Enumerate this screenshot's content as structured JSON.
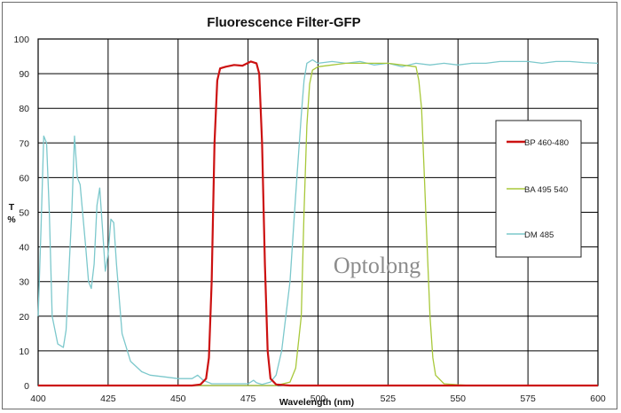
{
  "chart_data": {
    "type": "line",
    "title": "Fluorescence Filter-GFP",
    "xlabel": "Wavelength (nm)",
    "ylabel": "T\n%",
    "xlim": [
      400,
      600
    ],
    "ylim": [
      0,
      100
    ],
    "xticks": [
      400,
      425,
      450,
      475,
      500,
      525,
      550,
      575,
      600
    ],
    "yticks": [
      0,
      10,
      20,
      30,
      40,
      50,
      60,
      70,
      80,
      90,
      100
    ],
    "grid": true,
    "legend_position": "right",
    "watermark": "Optolong",
    "series": [
      {
        "name": "BP 460-480",
        "color": "#cc1111",
        "points": [
          [
            400,
            0
          ],
          [
            455,
            0
          ],
          [
            458,
            0.3
          ],
          [
            460,
            2
          ],
          [
            461,
            8
          ],
          [
            462,
            30
          ],
          [
            463,
            70
          ],
          [
            464,
            88
          ],
          [
            465,
            91.5
          ],
          [
            467,
            92
          ],
          [
            470,
            92.5
          ],
          [
            473,
            92.3
          ],
          [
            476,
            93.5
          ],
          [
            478,
            93
          ],
          [
            479,
            90
          ],
          [
            480,
            70
          ],
          [
            481,
            35
          ],
          [
            482,
            10
          ],
          [
            483,
            2
          ],
          [
            485,
            0.3
          ],
          [
            490,
            0
          ],
          [
            600,
            0
          ]
        ]
      },
      {
        "name": "BA 495-540",
        "color": "#a8c83a",
        "points": [
          [
            400,
            0
          ],
          [
            485,
            0
          ],
          [
            490,
            1
          ],
          [
            492,
            5
          ],
          [
            494,
            20
          ],
          [
            495,
            50
          ],
          [
            496,
            75
          ],
          [
            497,
            87
          ],
          [
            498,
            91
          ],
          [
            500,
            92
          ],
          [
            505,
            92.5
          ],
          [
            510,
            93
          ],
          [
            515,
            93
          ],
          [
            520,
            93
          ],
          [
            525,
            93
          ],
          [
            530,
            92.5
          ],
          [
            535,
            92
          ],
          [
            536,
            88
          ],
          [
            537,
            80
          ],
          [
            538,
            60
          ],
          [
            539,
            40
          ],
          [
            540,
            20
          ],
          [
            541,
            8
          ],
          [
            542,
            3
          ],
          [
            545,
            0.5
          ],
          [
            550,
            0.2
          ],
          [
            555,
            0
          ],
          [
            600,
            0
          ]
        ]
      },
      {
        "name": "DM 485",
        "color": "#7cc8cc",
        "points": [
          [
            400,
            20
          ],
          [
            401,
            45
          ],
          [
            402,
            72
          ],
          [
            403,
            70
          ],
          [
            404,
            50
          ],
          [
            405,
            20
          ],
          [
            407,
            12
          ],
          [
            409,
            11
          ],
          [
            410,
            16
          ],
          [
            412,
            50
          ],
          [
            413,
            72
          ],
          [
            414,
            60
          ],
          [
            415,
            58
          ],
          [
            417,
            40
          ],
          [
            418,
            30
          ],
          [
            419,
            28
          ],
          [
            420,
            35
          ],
          [
            421,
            52
          ],
          [
            422,
            57
          ],
          [
            423,
            45
          ],
          [
            424,
            33
          ],
          [
            425,
            38
          ],
          [
            426,
            48
          ],
          [
            427,
            47
          ],
          [
            428,
            35
          ],
          [
            430,
            15
          ],
          [
            433,
            7
          ],
          [
            437,
            4
          ],
          [
            440,
            3
          ],
          [
            445,
            2.5
          ],
          [
            450,
            2
          ],
          [
            455,
            2
          ],
          [
            457,
            3
          ],
          [
            459,
            1.5
          ],
          [
            462,
            0.5
          ],
          [
            470,
            0.5
          ],
          [
            475,
            0.5
          ],
          [
            477,
            1.5
          ],
          [
            478,
            0.8
          ],
          [
            480,
            0.3
          ],
          [
            483,
            1
          ],
          [
            485,
            3
          ],
          [
            487,
            10
          ],
          [
            490,
            30
          ],
          [
            492,
            55
          ],
          [
            494,
            78
          ],
          [
            495,
            88
          ],
          [
            496,
            93
          ],
          [
            498,
            94
          ],
          [
            500,
            93
          ],
          [
            505,
            93.5
          ],
          [
            510,
            93
          ],
          [
            515,
            93.5
          ],
          [
            520,
            92.5
          ],
          [
            525,
            93
          ],
          [
            530,
            92
          ],
          [
            535,
            93
          ],
          [
            540,
            92.5
          ],
          [
            545,
            93
          ],
          [
            550,
            92.5
          ],
          [
            555,
            93
          ],
          [
            560,
            93
          ],
          [
            565,
            93.5
          ],
          [
            570,
            93.5
          ],
          [
            575,
            93.5
          ],
          [
            580,
            93
          ],
          [
            585,
            93.5
          ],
          [
            590,
            93.5
          ],
          [
            595,
            93.2
          ],
          [
            600,
            93
          ]
        ]
      }
    ],
    "legend_labels": [
      "BP 460-480",
      "BA 495 540",
      "DM 485"
    ]
  }
}
